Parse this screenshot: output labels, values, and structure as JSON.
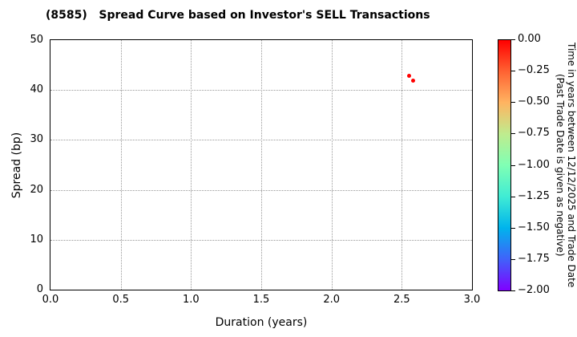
{
  "chart_data": {
    "type": "scatter",
    "title": "(8585)   Spread Curve based on Investor's SELL Transactions",
    "xlabel": "Duration (years)",
    "ylabel": "Spread (bp)",
    "xlim": [
      0.0,
      3.0
    ],
    "ylim": [
      0,
      50
    ],
    "xticks": [
      0.0,
      0.5,
      1.0,
      1.5,
      2.0,
      2.5,
      3.0
    ],
    "xtick_labels": [
      "0.0",
      "0.5",
      "1.0",
      "1.5",
      "2.0",
      "2.5",
      "3.0"
    ],
    "yticks": [
      0,
      10,
      20,
      30,
      40,
      50
    ],
    "ytick_labels": [
      "0",
      "10",
      "20",
      "30",
      "40",
      "50"
    ],
    "grid": true,
    "grid_style": "dotted",
    "points": [
      {
        "x": 2.55,
        "y": 42.8,
        "time_value": 0.0,
        "color": "#ff0000"
      },
      {
        "x": 2.58,
        "y": 41.9,
        "time_value": 0.0,
        "color": "#ff0000"
      }
    ],
    "colorbar": {
      "label_line1": "Time in years between 12/12/2025 and Trade Date",
      "label_line2": "(Past Trade Date is given as negative)",
      "tick_labels": [
        "0.00",
        "−0.25",
        "−0.50",
        "−0.75",
        "−1.00",
        "−1.25",
        "−1.50",
        "−1.75",
        "−2.00"
      ],
      "vmax": 0.0,
      "vmin": -2.0,
      "colormap": "rainbow",
      "gradient_stops": [
        "#ff0000",
        "#ff6232",
        "#ffb461",
        "#bfec8e",
        "#80ffb4",
        "#40ecd4",
        "#00b4ec",
        "#4062fa",
        "#8000ff"
      ]
    }
  }
}
